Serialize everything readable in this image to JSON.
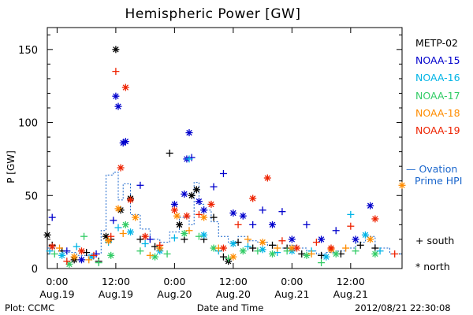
{
  "chart_data": {
    "type": "scatter",
    "title": "Hemispheric Power [GW]",
    "ylabel": "P [GW]",
    "xlabel": "Date and Time",
    "ylim": [
      0,
      165
    ],
    "yticks": [
      0,
      50,
      100,
      150
    ],
    "xlim": [
      "2012-08-18 22:00",
      "2012-08-21 22:30"
    ],
    "x_ticks": [
      {
        "time": "2012-08-19 00:00",
        "hour": "0:00",
        "date": "Aug.19"
      },
      {
        "time": "2012-08-19 12:00",
        "hour": "12:00",
        "date": "Aug.19"
      },
      {
        "time": "2012-08-20 00:00",
        "hour": "0:00",
        "date": "Aug.20"
      },
      {
        "time": "2012-08-20 12:00",
        "hour": "12:00",
        "date": "Aug.20"
      },
      {
        "time": "2012-08-21 00:00",
        "hour": "0:00",
        "date": "Aug.21"
      },
      {
        "time": "2012-08-21 12:00",
        "hour": "12:00",
        "date": "Aug.21"
      }
    ],
    "series": [
      {
        "name": "METP-02",
        "color": "#000000",
        "values": [
          [
            "2012-08-18 22:00",
            23,
            "north"
          ],
          [
            "2012-08-18 23:00",
            16,
            "south"
          ],
          [
            "2012-08-19 01:00",
            12,
            "south"
          ],
          [
            "2012-08-19 03:30",
            6,
            "north"
          ],
          [
            "2012-08-19 06:00",
            11,
            "south"
          ],
          [
            "2012-08-19 08:30",
            5,
            "south"
          ],
          [
            "2012-08-19 10:00",
            22,
            "north"
          ],
          [
            "2012-08-19 11:00",
            20,
            "south"
          ],
          [
            "2012-08-19 12:00",
            150,
            "north"
          ],
          [
            "2012-08-19 13:00",
            40,
            "north"
          ],
          [
            "2012-08-19 15:00",
            48,
            "north"
          ],
          [
            "2012-08-19 17:00",
            20,
            "south"
          ],
          [
            "2012-08-19 20:00",
            15,
            "south"
          ],
          [
            "2012-08-19 23:00",
            79,
            "south"
          ],
          [
            "2012-08-20 01:00",
            30,
            "north"
          ],
          [
            "2012-08-20 02:00",
            20,
            "south"
          ],
          [
            "2012-08-20 03:30",
            50,
            "north"
          ],
          [
            "2012-08-20 04:30",
            54,
            "north"
          ],
          [
            "2012-08-20 06:00",
            20,
            "south"
          ],
          [
            "2012-08-20 08:00",
            35,
            "south"
          ],
          [
            "2012-08-20 10:00",
            8,
            "south"
          ],
          [
            "2012-08-20 11:00",
            5,
            "north"
          ],
          [
            "2012-08-20 13:00",
            18,
            "south"
          ],
          [
            "2012-08-20 16:00",
            14,
            "south"
          ],
          [
            "2012-08-20 20:00",
            16,
            "south"
          ],
          [
            "2012-08-20 23:00",
            14,
            "south"
          ],
          [
            "2012-08-21 02:00",
            10,
            "south"
          ],
          [
            "2012-08-21 06:00",
            9,
            "south"
          ],
          [
            "2012-08-21 10:00",
            10,
            "south"
          ],
          [
            "2012-08-21 14:00",
            16,
            "south"
          ],
          [
            "2012-08-21 17:00",
            14,
            "south"
          ]
        ]
      },
      {
        "name": "NOAA-15",
        "color": "#0000cc",
        "values": [
          [
            "2012-08-18 23:00",
            35,
            "south"
          ],
          [
            "2012-08-19 02:00",
            12,
            "south"
          ],
          [
            "2012-08-19 05:00",
            6,
            "north"
          ],
          [
            "2012-08-19 08:00",
            10,
            "south"
          ],
          [
            "2012-08-19 11:30",
            33,
            "south"
          ],
          [
            "2012-08-19 12:00",
            118,
            "north"
          ],
          [
            "2012-08-19 12:30",
            111,
            "north"
          ],
          [
            "2012-08-19 13:30",
            86,
            "north"
          ],
          [
            "2012-08-19 14:00",
            87,
            "north"
          ],
          [
            "2012-08-19 17:00",
            57,
            "south"
          ],
          [
            "2012-08-19 19:00",
            20,
            "south"
          ],
          [
            "2012-08-20 00:00",
            44,
            "north"
          ],
          [
            "2012-08-20 02:00",
            51,
            "north"
          ],
          [
            "2012-08-20 02:30",
            75,
            "north"
          ],
          [
            "2012-08-20 03:00",
            93,
            "north"
          ],
          [
            "2012-08-20 03:30",
            76,
            "south"
          ],
          [
            "2012-08-20 05:00",
            46,
            "north"
          ],
          [
            "2012-08-20 06:00",
            40,
            "north"
          ],
          [
            "2012-08-20 08:00",
            56,
            "south"
          ],
          [
            "2012-08-20 10:00",
            65,
            "south"
          ],
          [
            "2012-08-20 12:00",
            38,
            "north"
          ],
          [
            "2012-08-20 14:00",
            36,
            "north"
          ],
          [
            "2012-08-20 16:00",
            30,
            "south"
          ],
          [
            "2012-08-20 18:00",
            40,
            "south"
          ],
          [
            "2012-08-20 20:00",
            30,
            "north"
          ],
          [
            "2012-08-20 22:00",
            39,
            "south"
          ],
          [
            "2012-08-21 00:00",
            20,
            "north"
          ],
          [
            "2012-08-21 03:00",
            30,
            "south"
          ],
          [
            "2012-08-21 06:00",
            20,
            "north"
          ],
          [
            "2012-08-21 09:00",
            26,
            "south"
          ],
          [
            "2012-08-21 13:00",
            20,
            "north"
          ],
          [
            "2012-08-21 16:00",
            43,
            "north"
          ]
        ]
      },
      {
        "name": "NOAA-16",
        "color": "#00b4e6",
        "values": [
          [
            "2012-08-18 22:30",
            12,
            "south"
          ],
          [
            "2012-08-19 01:00",
            9,
            "north"
          ],
          [
            "2012-08-19 04:00",
            15,
            "south"
          ],
          [
            "2012-08-19 07:00",
            8,
            "north"
          ],
          [
            "2012-08-19 10:30",
            18,
            "south"
          ],
          [
            "2012-08-19 12:30",
            28,
            "south"
          ],
          [
            "2012-08-19 15:00",
            25,
            "north"
          ],
          [
            "2012-08-19 18:00",
            17,
            "south"
          ],
          [
            "2012-08-19 21:00",
            12,
            "north"
          ],
          [
            "2012-08-20 00:00",
            21,
            "south"
          ],
          [
            "2012-08-20 03:00",
            75,
            "south"
          ],
          [
            "2012-08-20 06:00",
            23,
            "north"
          ],
          [
            "2012-08-20 09:00",
            12,
            "south"
          ],
          [
            "2012-08-20 12:00",
            17,
            "north"
          ],
          [
            "2012-08-20 15:00",
            15,
            "south"
          ],
          [
            "2012-08-20 18:00",
            13,
            "north"
          ],
          [
            "2012-08-20 21:00",
            11,
            "south"
          ],
          [
            "2012-08-21 00:00",
            12,
            "north"
          ],
          [
            "2012-08-21 04:00",
            12,
            "south"
          ],
          [
            "2012-08-21 07:00",
            8,
            "north"
          ],
          [
            "2012-08-21 12:00",
            37,
            "south"
          ],
          [
            "2012-08-21 15:00",
            23,
            "north"
          ],
          [
            "2012-08-21 18:00",
            12,
            "south"
          ]
        ]
      },
      {
        "name": "NOAA-17",
        "color": "#33cc66",
        "values": [
          [
            "2012-08-18 23:30",
            10,
            "south"
          ],
          [
            "2012-08-19 02:30",
            3,
            "north"
          ],
          [
            "2012-08-19 05:30",
            22,
            "south"
          ],
          [
            "2012-08-19 08:30",
            4,
            "south"
          ],
          [
            "2012-08-19 11:00",
            9,
            "north"
          ],
          [
            "2012-08-19 14:00",
            30,
            "north"
          ],
          [
            "2012-08-19 17:00",
            12,
            "south"
          ],
          [
            "2012-08-19 20:00",
            8,
            "north"
          ],
          [
            "2012-08-19 22:30",
            10,
            "south"
          ],
          [
            "2012-08-20 02:00",
            24,
            "north"
          ],
          [
            "2012-08-20 05:00",
            22,
            "south"
          ],
          [
            "2012-08-20 08:00",
            14,
            "north"
          ],
          [
            "2012-08-20 11:00",
            7,
            "south"
          ],
          [
            "2012-08-20 14:00",
            12,
            "north"
          ],
          [
            "2012-08-20 17:00",
            12,
            "south"
          ],
          [
            "2012-08-20 20:00",
            10,
            "north"
          ],
          [
            "2012-08-20 23:00",
            12,
            "south"
          ],
          [
            "2012-08-21 03:00",
            9,
            "north"
          ],
          [
            "2012-08-21 06:00",
            4,
            "south"
          ],
          [
            "2012-08-21 09:00",
            10,
            "north"
          ],
          [
            "2012-08-21 13:00",
            12,
            "south"
          ],
          [
            "2012-08-21 17:00",
            10,
            "north"
          ]
        ]
      },
      {
        "name": "NOAA-18",
        "color": "#ff8c00",
        "values": [
          [
            "2012-08-19 00:30",
            14,
            "south"
          ],
          [
            "2012-08-19 03:30",
            8,
            "north"
          ],
          [
            "2012-08-19 06:30",
            6,
            "south"
          ],
          [
            "2012-08-19 10:30",
            19,
            "north"
          ],
          [
            "2012-08-19 12:30",
            41,
            "north"
          ],
          [
            "2012-08-19 13:30",
            24,
            "south"
          ],
          [
            "2012-08-19 16:00",
            35,
            "north"
          ],
          [
            "2012-08-19 19:00",
            9,
            "south"
          ],
          [
            "2012-08-19 21:00",
            14,
            "north"
          ],
          [
            "2012-08-20 00:30",
            36,
            "north"
          ],
          [
            "2012-08-20 03:00",
            26,
            "south"
          ],
          [
            "2012-08-20 06:00",
            35,
            "north"
          ],
          [
            "2012-08-20 09:00",
            14,
            "south"
          ],
          [
            "2012-08-20 12:00",
            8,
            "north"
          ],
          [
            "2012-08-20 15:00",
            20,
            "south"
          ],
          [
            "2012-08-20 18:00",
            18,
            "north"
          ],
          [
            "2012-08-20 21:00",
            14,
            "south"
          ],
          [
            "2012-08-21 00:00",
            14,
            "north"
          ],
          [
            "2012-08-21 04:00",
            10,
            "south"
          ],
          [
            "2012-08-21 08:00",
            13,
            "north"
          ],
          [
            "2012-08-21 11:00",
            14,
            "south"
          ],
          [
            "2012-08-21 16:00",
            20,
            "north"
          ],
          [
            "2012-08-21 22:30",
            57,
            "north"
          ]
        ]
      },
      {
        "name": "NOAA-19",
        "color": "#ee2200",
        "values": [
          [
            "2012-08-18 23:00",
            15,
            "north"
          ],
          [
            "2012-08-19 02:00",
            5,
            "south"
          ],
          [
            "2012-08-19 05:00",
            12,
            "north"
          ],
          [
            "2012-08-19 07:30",
            9,
            "south"
          ],
          [
            "2012-08-19 11:00",
            22,
            "south"
          ],
          [
            "2012-08-19 12:00",
            135,
            "south"
          ],
          [
            "2012-08-19 13:00",
            69,
            "north"
          ],
          [
            "2012-08-19 14:00",
            124,
            "north"
          ],
          [
            "2012-08-19 15:00",
            47,
            "north"
          ],
          [
            "2012-08-19 18:00",
            22,
            "north"
          ],
          [
            "2012-08-19 21:00",
            16,
            "south"
          ],
          [
            "2012-08-20 00:00",
            40,
            "north"
          ],
          [
            "2012-08-20 02:30",
            36,
            "north"
          ],
          [
            "2012-08-20 05:00",
            37,
            "south"
          ],
          [
            "2012-08-20 07:30",
            44,
            "north"
          ],
          [
            "2012-08-20 10:00",
            14,
            "north"
          ],
          [
            "2012-08-20 13:00",
            30,
            "south"
          ],
          [
            "2012-08-20 16:00",
            48,
            "north"
          ],
          [
            "2012-08-20 19:00",
            62,
            "north"
          ],
          [
            "2012-08-20 22:00",
            19,
            "south"
          ],
          [
            "2012-08-21 01:00",
            14,
            "north"
          ],
          [
            "2012-08-21 05:00",
            18,
            "south"
          ],
          [
            "2012-08-21 08:00",
            14,
            "north"
          ],
          [
            "2012-08-21 12:00",
            29,
            "south"
          ],
          [
            "2012-08-21 17:00",
            34,
            "north"
          ],
          [
            "2012-08-21 21:00",
            10,
            "south"
          ]
        ]
      }
    ],
    "ovation": {
      "name": "Ovation Prime HPI",
      "color": "#1a66cc",
      "style": "dashed-step",
      "values": [
        [
          "2012-08-18 22:00",
          14
        ],
        [
          "2012-08-19 01:00",
          11
        ],
        [
          "2012-08-19 04:00",
          9
        ],
        [
          "2012-08-19 07:00",
          10
        ],
        [
          "2012-08-19 09:00",
          26
        ],
        [
          "2012-08-19 10:00",
          64
        ],
        [
          "2012-08-19 11:30",
          66
        ],
        [
          "2012-08-19 12:30",
          47
        ],
        [
          "2012-08-19 13:30",
          58
        ],
        [
          "2012-08-19 15:00",
          37
        ],
        [
          "2012-08-19 17:00",
          27
        ],
        [
          "2012-08-19 19:00",
          20
        ],
        [
          "2012-08-19 21:00",
          18
        ],
        [
          "2012-08-19 23:00",
          25
        ],
        [
          "2012-08-20 01:00",
          35
        ],
        [
          "2012-08-20 03:00",
          30
        ],
        [
          "2012-08-20 04:00",
          59
        ],
        [
          "2012-08-20 05:00",
          44
        ],
        [
          "2012-08-20 06:00",
          40
        ],
        [
          "2012-08-20 07:30",
          32
        ],
        [
          "2012-08-20 09:00",
          22
        ],
        [
          "2012-08-20 11:00",
          18
        ],
        [
          "2012-08-20 13:00",
          22
        ],
        [
          "2012-08-20 15:00",
          19
        ],
        [
          "2012-08-20 17:00",
          18
        ],
        [
          "2012-08-20 19:00",
          16
        ],
        [
          "2012-08-20 21:00",
          14
        ],
        [
          "2012-08-20 23:00",
          16
        ],
        [
          "2012-08-21 01:00",
          14
        ],
        [
          "2012-08-21 03:00",
          12
        ],
        [
          "2012-08-21 05:00",
          10
        ],
        [
          "2012-08-21 07:00",
          11
        ],
        [
          "2012-08-21 09:00",
          12
        ],
        [
          "2012-08-21 11:00",
          14
        ],
        [
          "2012-08-21 13:00",
          18
        ],
        [
          "2012-08-21 15:00",
          22
        ],
        [
          "2012-08-21 17:00",
          14
        ],
        [
          "2012-08-21 20:00",
          10
        ],
        [
          "2012-08-21 22:30",
          10
        ]
      ]
    },
    "legend": [
      "METP-02",
      "NOAA-15",
      "NOAA-16",
      "NOAA-17",
      "NOAA-18",
      "NOAA-19"
    ],
    "legend_placement": "right",
    "grid": false,
    "markers": {
      "south": "+",
      "north": "*"
    }
  },
  "labels": {
    "ovation_line1": "— Ovation",
    "ovation_line2": "Prime HPI",
    "south": "+ south",
    "north": "* north",
    "footer_left": "Plot: CCMC",
    "footer_right": "2012/08/21 22:30:08"
  }
}
